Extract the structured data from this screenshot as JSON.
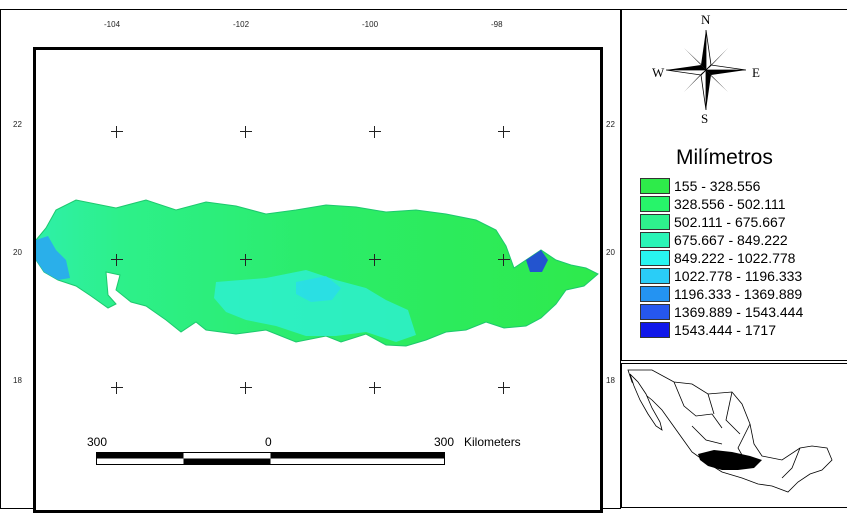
{
  "map": {
    "lon_ticks": [
      "-104",
      "-102",
      "-100",
      "-98"
    ],
    "lat_ticks": [
      "22",
      "20",
      "18"
    ],
    "scale_bar": {
      "left": "300",
      "center": "0",
      "right": "300",
      "unit": "Kilometers"
    },
    "region_color": "#2FEA6A"
  },
  "compass": {
    "n": "N",
    "s": "S",
    "e": "E",
    "w": "W"
  },
  "legend": {
    "title": "Milímetros",
    "items": [
      {
        "label": "155 - 328.556",
        "color": "#2EEB4A"
      },
      {
        "label": "328.556 - 502.111",
        "color": "#27F46A"
      },
      {
        "label": "502.111 - 675.667",
        "color": "#2EF28D"
      },
      {
        "label": "675.667 - 849.222",
        "color": "#2AF4B6"
      },
      {
        "label": "849.222 - 1022.778",
        "color": "#28F4F0"
      },
      {
        "label": "1022.778 - 1196.333",
        "color": "#2ACDF7"
      },
      {
        "label": "1196.333 - 1369.889",
        "color": "#2493F2"
      },
      {
        "label": "1369.889 - 1543.444",
        "color": "#2657EE"
      },
      {
        "label": "1543.444 - 1717",
        "color": "#1118E9"
      }
    ]
  }
}
